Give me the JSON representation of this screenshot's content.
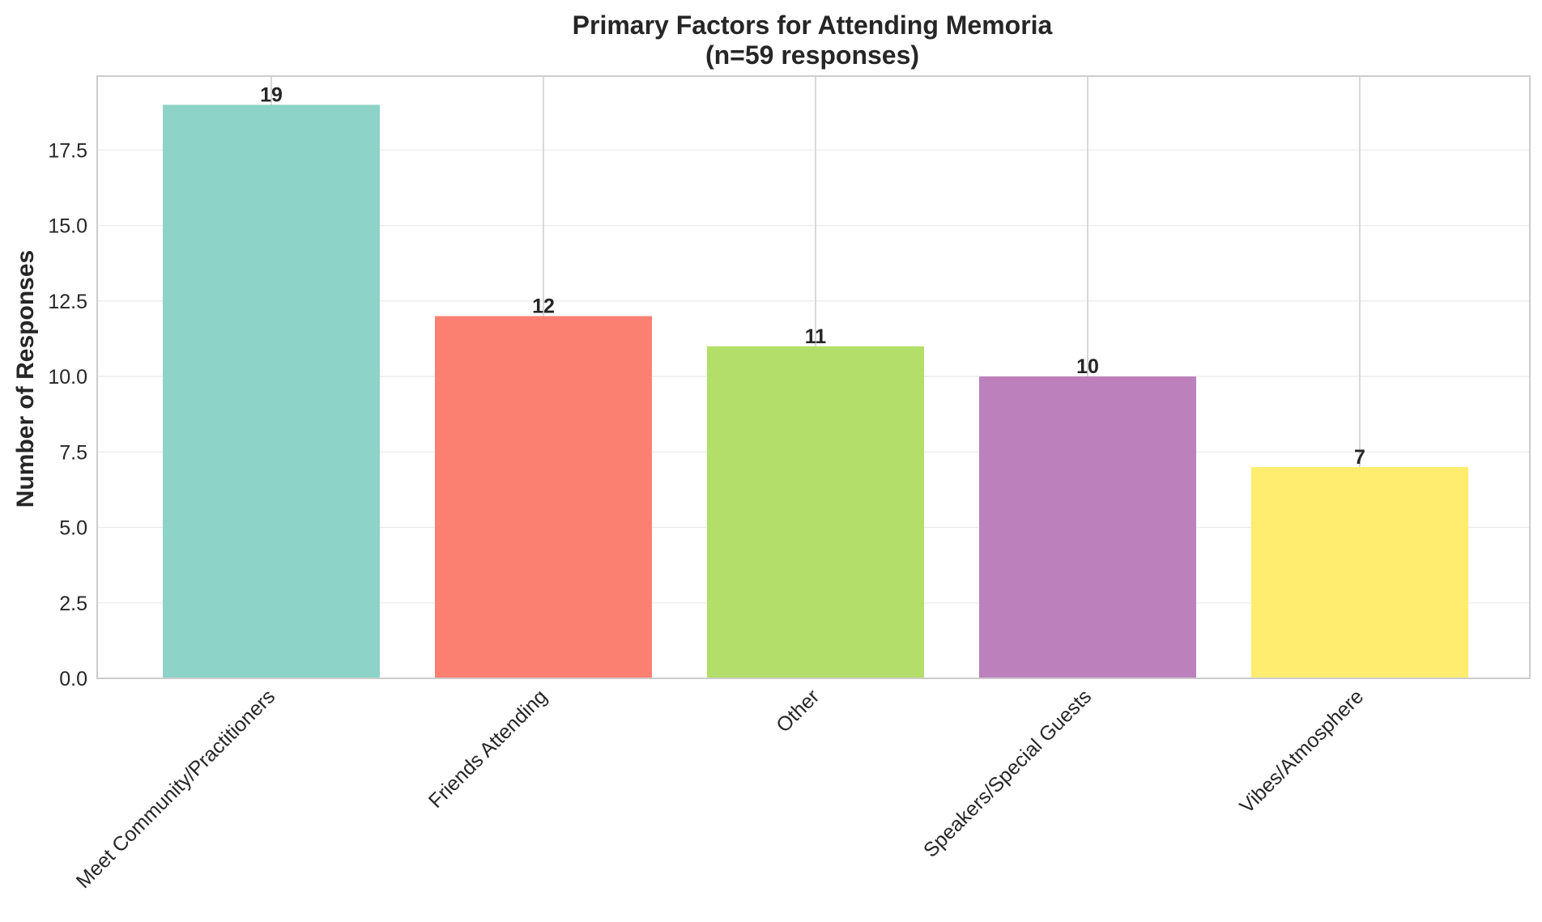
{
  "chart_data": {
    "type": "bar",
    "title_line1": "Primary Factors for Attending Memoria",
    "title_line2": "(n=59 responses)",
    "xlabel": "",
    "ylabel": "Number of Responses",
    "categories": [
      "Meet Community/Practitioners",
      "Friends Attending",
      "Other",
      "Speakers/Special Guests",
      "Vibes/Atmosphere"
    ],
    "values": [
      19,
      12,
      11,
      10,
      7
    ],
    "data_labels": [
      "19",
      "12",
      "11",
      "10",
      "7"
    ],
    "colors": [
      "#8dd3c7",
      "#fb8072",
      "#b3de69",
      "#bc80bd",
      "#ffed6f"
    ],
    "ylim": [
      0,
      19.95
    ],
    "yticks": [
      0,
      2.5,
      5,
      7.5,
      10,
      12.5,
      15,
      17.5
    ],
    "ytick_labels": [
      "0.0",
      "2.5",
      "5.0",
      "7.5",
      "10.0",
      "12.5",
      "15.0",
      "17.5"
    ],
    "grid": true,
    "legend": "none",
    "x_tick_rotation_deg": 45
  }
}
